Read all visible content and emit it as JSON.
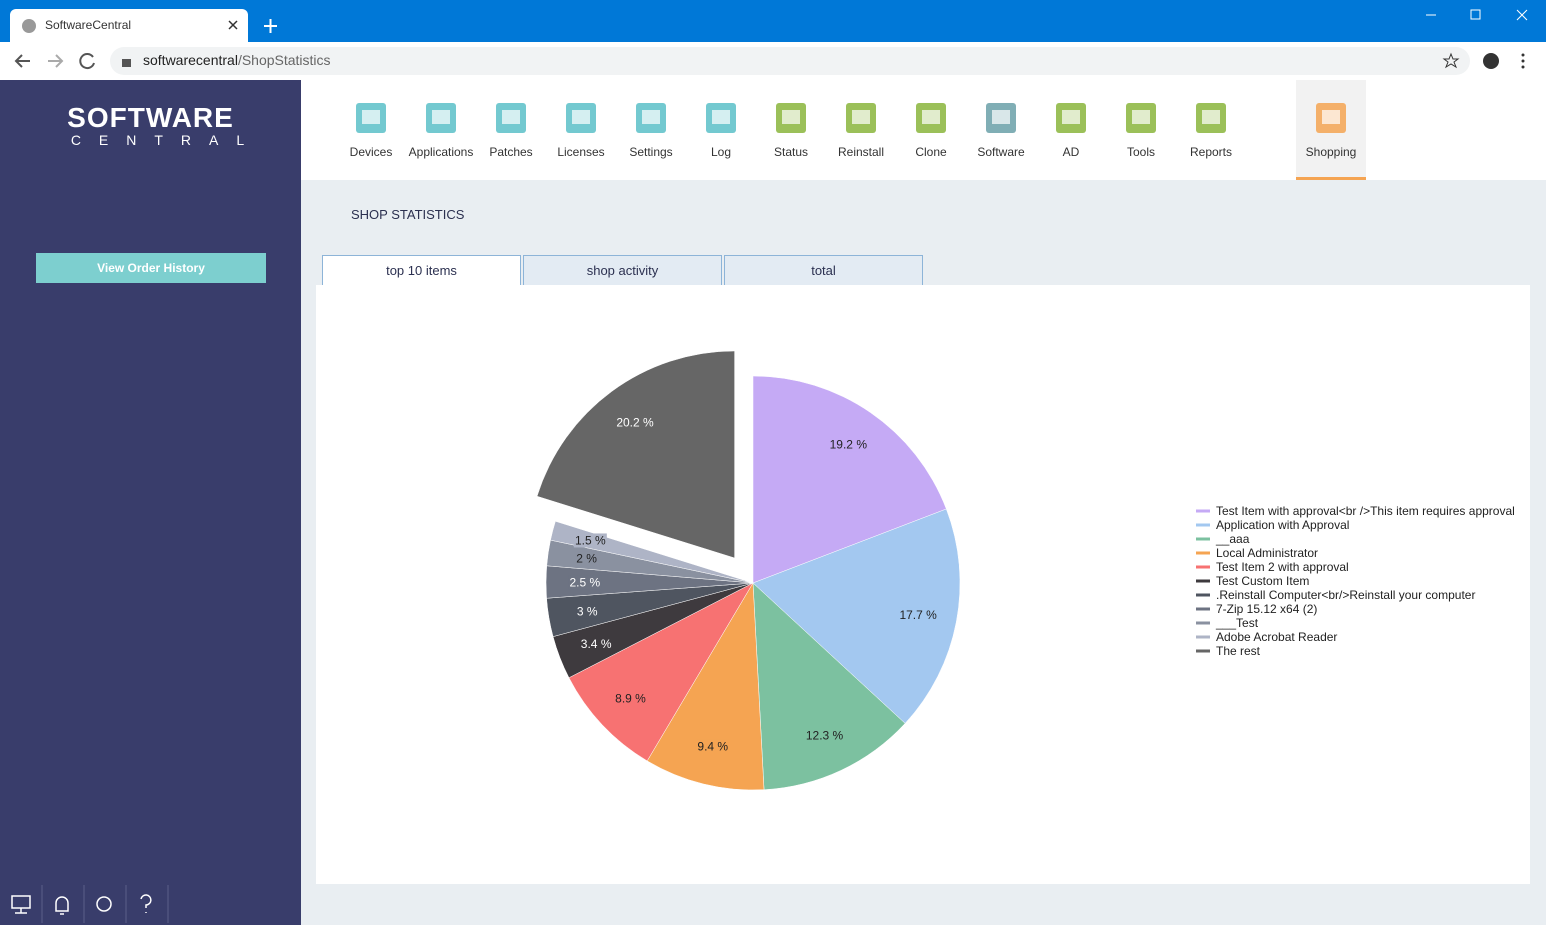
{
  "browser": {
    "tab_title": "SoftwareCentral",
    "url_host": "softwarecentral",
    "url_path": "/ShopStatistics"
  },
  "sidebar": {
    "logo_top": "SOFTWARE",
    "logo_bottom": "CENTRAL",
    "button": "View Order History"
  },
  "nav": {
    "items": [
      "Devices",
      "Applications",
      "Patches",
      "Licenses",
      "Settings",
      "Log",
      "Status",
      "Reinstall",
      "Clone",
      "Software",
      "AD",
      "Tools",
      "Reports",
      "Shopping"
    ]
  },
  "page_title": "SHOP STATISTICS",
  "tabs": [
    "top 10 items",
    "shop activity",
    "total"
  ],
  "chart_data": {
    "type": "pie",
    "categories": [
      "Test Item with approval<br />This item requires approval",
      "Application with Approval",
      "__aaa",
      "Local Administrator",
      "Test Item 2 with approval",
      "Test Custom Item",
      ".Reinstall Computer<br/>Reinstall your computer",
      "7-Zip 15.12 x64 (2)",
      "___Test",
      "Adobe Acrobat Reader",
      "The rest"
    ],
    "values": [
      19.2,
      17.7,
      12.3,
      9.4,
      8.9,
      3.4,
      3,
      2.5,
      2,
      1.5,
      20.2
    ],
    "value_labels": [
      "19.2 %",
      "17.7 %",
      "12.3 %",
      "9.4 %",
      "8.9 %",
      "3.4 %",
      "3 %",
      "2.5 %",
      "2 %",
      "1.5 %",
      "20.2 %"
    ],
    "colors": [
      "#c5aaf5",
      "#a3c8f0",
      "#7cc1a0",
      "#f5a452",
      "#f77272",
      "#3e3a3e",
      "#4f5560",
      "#6d7382",
      "#8a91a0",
      "#aeb4c6",
      "#666666"
    ],
    "pull": [
      0,
      0,
      0,
      0,
      0,
      0,
      0,
      0,
      0,
      0,
      0.15
    ],
    "legend": "right"
  }
}
